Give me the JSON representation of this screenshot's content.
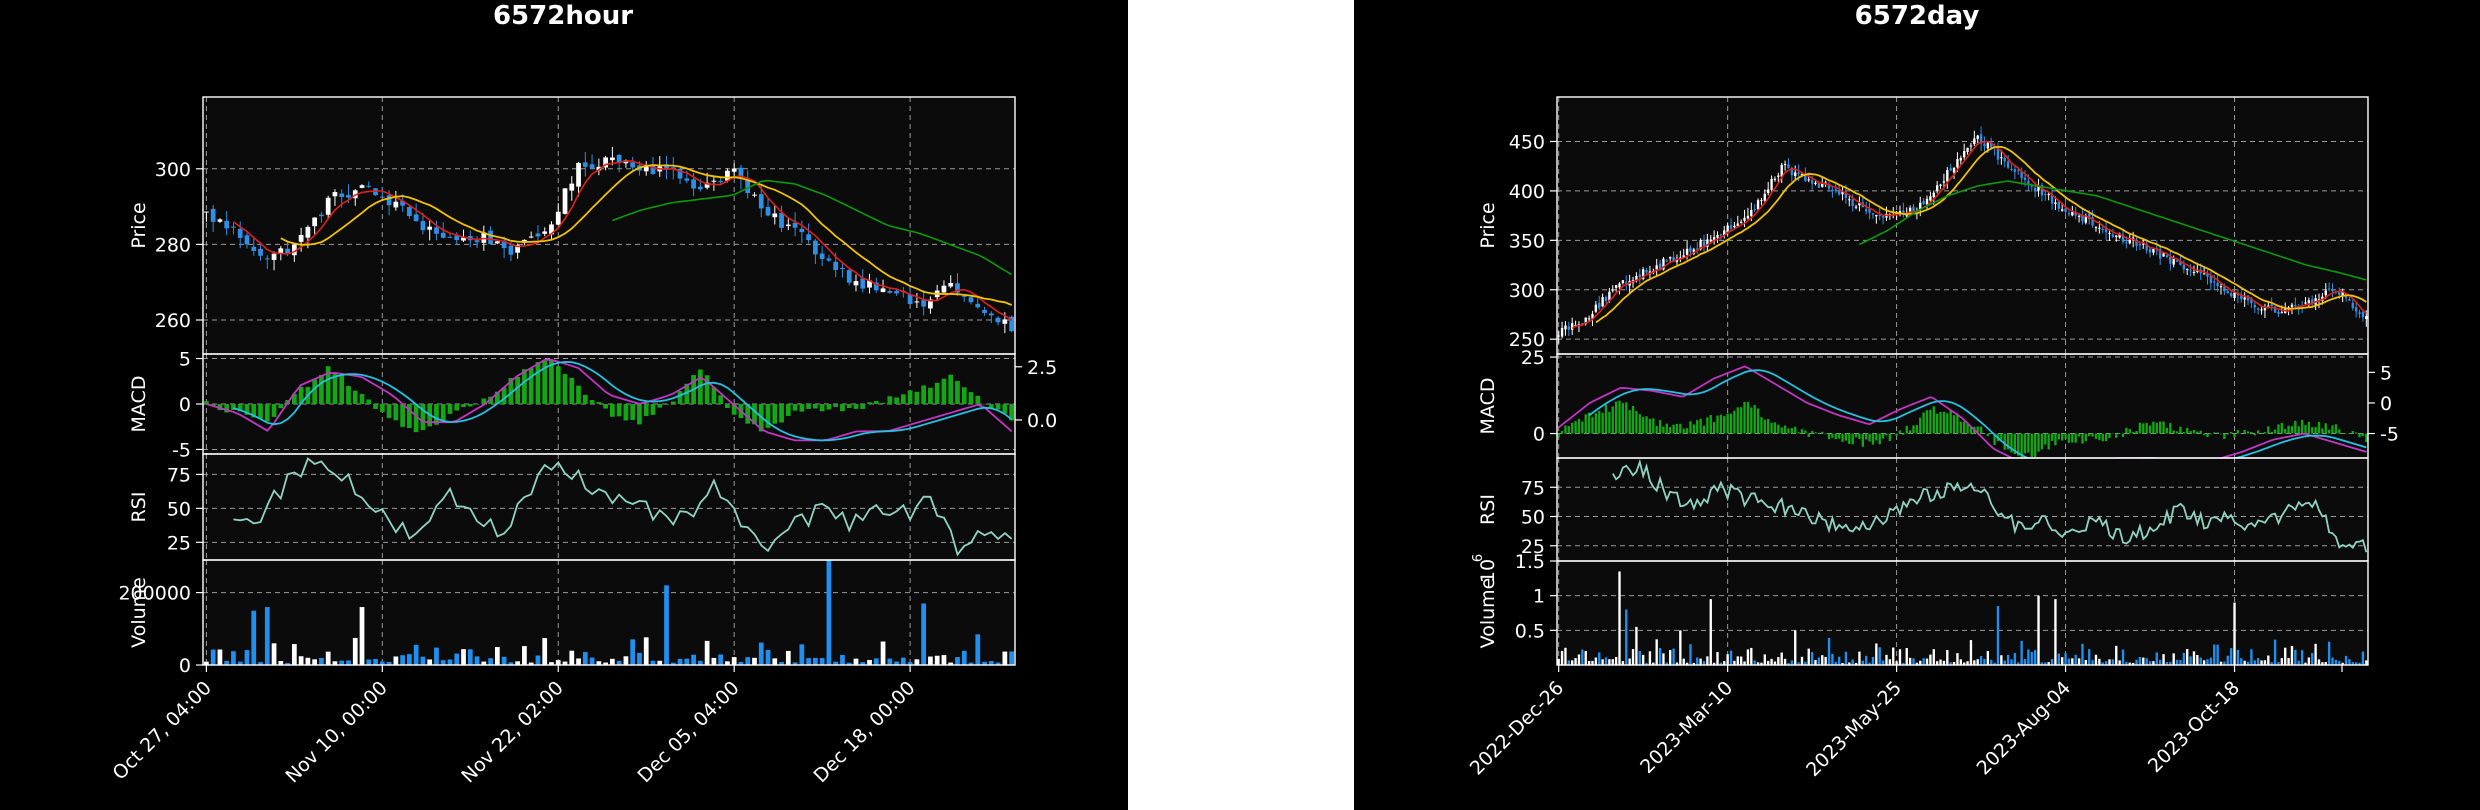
{
  "colors": {
    "background": "#000000",
    "axes_face": "#0b0b0b",
    "spine": "#ffffff",
    "grid": "#9a9a9a",
    "candle_up": "#ffffff",
    "candle_down": "#2e8fe6",
    "ma_short": "#e0201a",
    "ma_mid": "#f2c200",
    "ma_long": "#0c9a0c",
    "macd_line": "#c435c4",
    "signal_line": "#27c0e0",
    "macd_hist": "#14a614",
    "rsi_line": "#8fd3c3",
    "volume_up": "#ffffff",
    "volume_down": "#2090f0"
  },
  "chart_data": [
    {
      "title": "6572hour",
      "type": "candlestick",
      "x_tick_labels": [
        "Oct 27, 04:00",
        "Nov 10, 00:00",
        "Nov 22, 02:00",
        "Dec 05, 04:00",
        "Dec 18, 00:00"
      ],
      "n_bars": 120,
      "price": {
        "ylabel": "Price",
        "ylim": [
          251,
          319
        ],
        "yticks": [
          260,
          280,
          300
        ],
        "close_path": [
          288,
          283,
          276,
          281,
          292,
          295,
          291,
          285,
          281,
          282,
          278,
          284,
          300,
          303,
          301,
          299,
          295,
          300,
          288,
          284,
          276,
          270,
          269,
          263,
          270,
          262,
          258
        ],
        "ma_short_note": "short moving average tracks close",
        "ma_long_path": [
          null,
          null,
          null,
          null,
          null,
          null,
          null,
          null,
          null,
          null,
          null,
          null,
          null,
          286,
          289,
          291,
          292,
          293,
          297,
          296,
          293,
          289,
          285,
          283,
          280,
          277,
          272
        ]
      },
      "macd": {
        "ylabel": "MACD",
        "ylim": [
          -5.5,
          5.5
        ],
        "yticks": [
          -5,
          0,
          5
        ],
        "right_yticks": [
          0.0,
          2.5
        ],
        "right_ylim": [
          -1.6,
          3.1
        ],
        "macd_path": [
          0,
          -1,
          -3,
          2,
          3.5,
          3,
          1,
          -2,
          -2,
          0,
          3,
          5,
          4,
          1,
          0,
          1,
          3,
          0,
          -3,
          -4,
          -4,
          -3,
          -3,
          -2,
          -1,
          0,
          -3
        ],
        "hist_path": [
          0,
          -1,
          -2,
          1.5,
          4,
          1,
          -2,
          -3,
          -1,
          0.5,
          3,
          5,
          2,
          -1,
          -2,
          0,
          4,
          -1,
          -3,
          -1,
          -0.5,
          -0.5,
          0.5,
          1.5,
          3,
          0.5,
          -1.5
        ]
      },
      "rsi": {
        "ylabel": "RSI",
        "ylim": [
          12,
          90
        ],
        "yticks": [
          25,
          50,
          75
        ],
        "path": [
          null,
          40,
          45,
          70,
          85,
          78,
          55,
          35,
          30,
          60,
          45,
          30,
          65,
          88,
          70,
          55,
          50,
          45,
          40,
          70,
          30,
          25,
          38,
          50,
          40,
          55,
          45,
          60,
          20,
          35,
          28
        ]
      },
      "volume": {
        "ylabel": "Volume",
        "ylim": [
          0,
          290000
        ],
        "yticks": [
          0,
          200000
        ],
        "ytick_labels": [
          "0",
          "200000"
        ],
        "spikes": [
          [
            7,
            150000
          ],
          [
            9,
            160000
          ],
          [
            23,
            160000
          ],
          [
            68,
            220000
          ],
          [
            92,
            290000
          ],
          [
            106,
            170000
          ]
        ]
      }
    },
    {
      "title": "6572day",
      "type": "candlestick",
      "x_tick_labels": [
        "2022-Dec-26",
        "2023-Mar-10",
        "2023-May-25",
        "2023-Aug-04",
        "2023-Oct-18"
      ],
      "n_bars": 240,
      "price": {
        "ylabel": "Price",
        "ylim": [
          235,
          495
        ],
        "yticks": [
          250,
          300,
          350,
          400,
          450
        ],
        "close_path": [
          258,
          272,
          300,
          318,
          330,
          345,
          360,
          380,
          425,
          410,
          400,
          380,
          372,
          385,
          420,
          455,
          430,
          405,
          385,
          370,
          355,
          345,
          330,
          318,
          300,
          285,
          278,
          290,
          300,
          270
        ],
        "ma_long_path": [
          null,
          null,
          null,
          null,
          null,
          null,
          null,
          null,
          null,
          null,
          345,
          360,
          380,
          395,
          405,
          410,
          405,
          400,
          395,
          385,
          375,
          365,
          355,
          345,
          335,
          325,
          318,
          310
        ]
      },
      "macd": {
        "ylabel": "MACD",
        "ylim": [
          -8,
          26
        ],
        "yticks": [
          0,
          25
        ],
        "right_yticks": [
          -5,
          0,
          5
        ],
        "right_ylim": [
          -9,
          8
        ],
        "macd_path": [
          2,
          10,
          15,
          14,
          12,
          18,
          22,
          16,
          10,
          6,
          3,
          8,
          12,
          5,
          -5,
          -10,
          -12,
          -10,
          -8,
          -8,
          -10,
          -9,
          -6,
          -2,
          0,
          -3,
          -6
        ],
        "hist_path": [
          0,
          6,
          10,
          4,
          2,
          5,
          10,
          3,
          0,
          -2,
          -3,
          0,
          8,
          5,
          -2,
          -8,
          -3,
          -2,
          -1,
          4,
          2,
          -1,
          0,
          2,
          3,
          2,
          -2
        ]
      },
      "rsi": {
        "ylabel": "RSI",
        "ylim": [
          12,
          100
        ],
        "yticks": [
          25,
          50,
          75
        ],
        "path": [
          null,
          null,
          80,
          95,
          70,
          60,
          75,
          65,
          60,
          55,
          45,
          40,
          50,
          60,
          72,
          75,
          65,
          40,
          50,
          35,
          45,
          30,
          40,
          55,
          45,
          50,
          40,
          55,
          60,
          30,
          22
        ]
      },
      "volume": {
        "ylabel": "Volume",
        "exponent_label": "1e6",
        "ylim": [
          0,
          1.5
        ],
        "yticks": [
          0.5,
          1.0,
          1.5
        ],
        "spikes": [
          [
            18,
            1.35
          ],
          [
            20,
            0.8
          ],
          [
            23,
            0.55
          ],
          [
            36,
            0.5
          ],
          [
            45,
            0.95
          ],
          [
            70,
            0.5
          ],
          [
            130,
            0.85
          ],
          [
            142,
            1.0
          ],
          [
            147,
            0.95
          ],
          [
            200,
            0.9
          ]
        ]
      }
    }
  ]
}
